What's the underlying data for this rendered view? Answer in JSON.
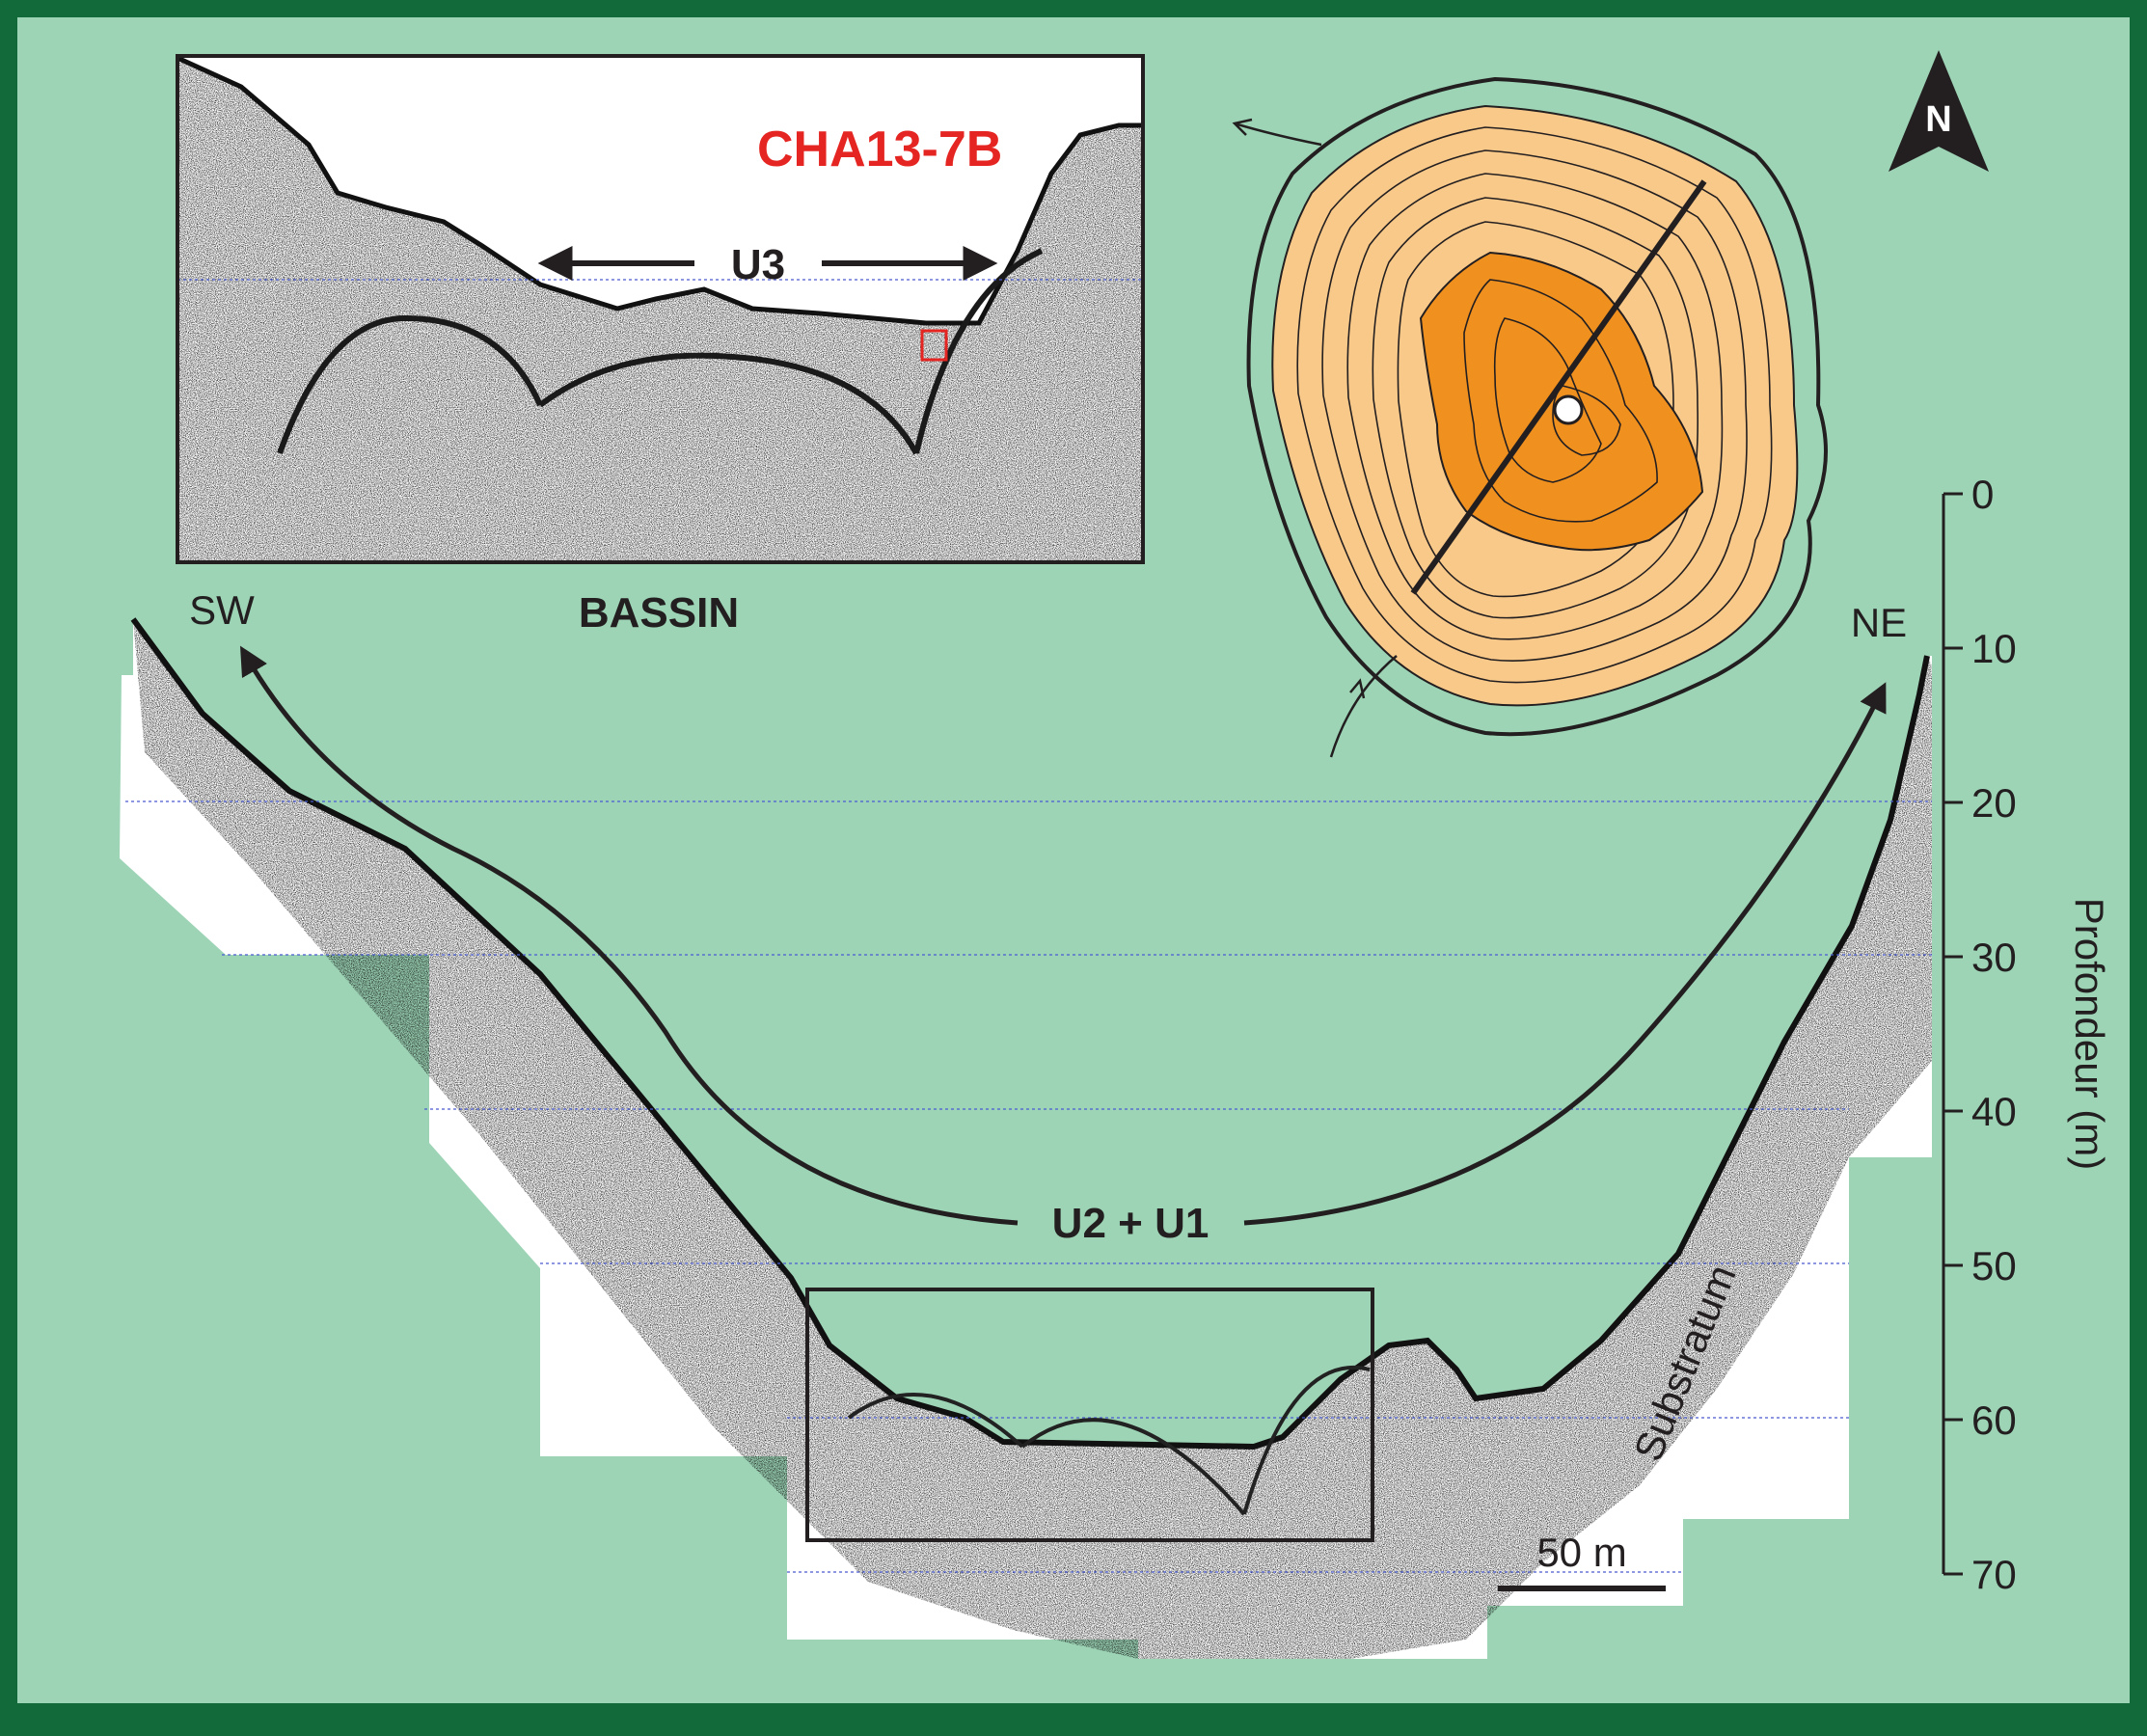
{
  "figure": {
    "core_label": "CHA13-7B",
    "inset_unit_label": "U3",
    "inset_basin_label": "BASSIN",
    "side_left": "SW",
    "side_right": "NE",
    "main_unit_label": "U2 + U1",
    "substratum_label": "Substratum",
    "scale_bar_label": "50 m",
    "north_label": "N",
    "depth_axis": {
      "title": "Profondeur (m)",
      "ticks": [
        "0",
        "10",
        "20",
        "30",
        "40",
        "50",
        "60",
        "70"
      ]
    }
  },
  "colors": {
    "frame": "#126a3b",
    "background": "#9dd4b6",
    "lake_outer": "#f9c98a",
    "lake_inner": "#f0901f",
    "core_marker": "#e52521",
    "ink": "#231f20"
  }
}
